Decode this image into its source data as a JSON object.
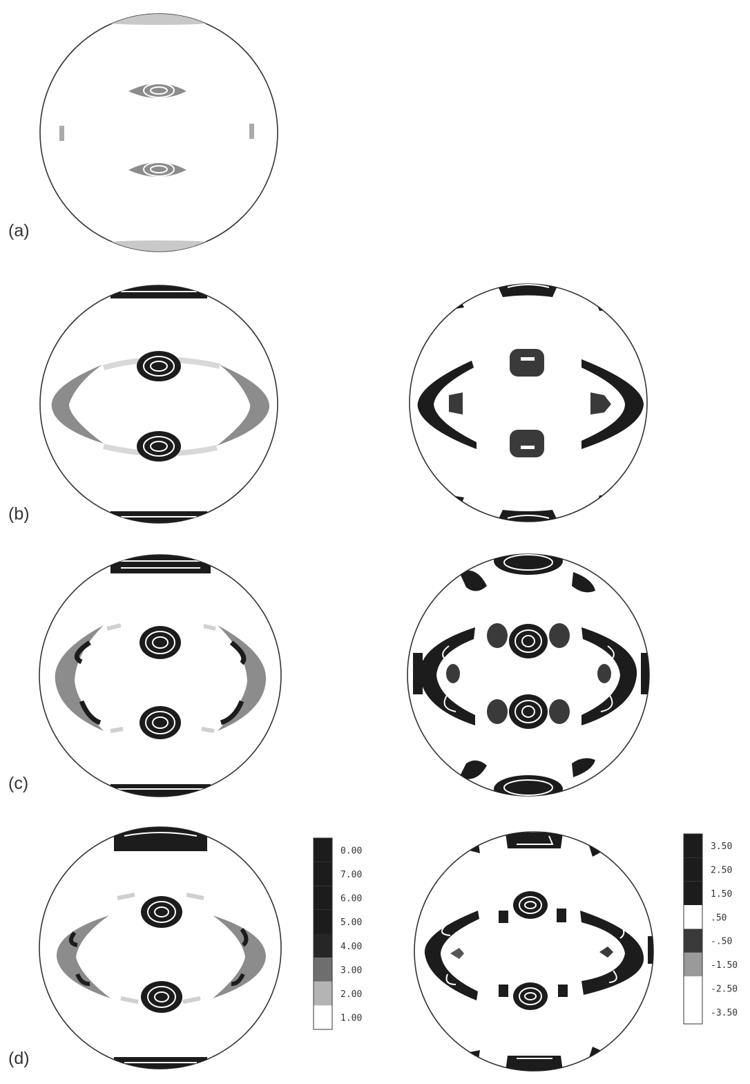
{
  "panels": [
    {
      "id": "a",
      "label": "(a)"
    },
    {
      "id": "b",
      "label": "(b)"
    },
    {
      "id": "c",
      "label": "(c)"
    },
    {
      "id": "d",
      "label": "(d)"
    }
  ],
  "scales": {
    "left": {
      "ticks": [
        "0.00",
        "7.00",
        "6.00",
        "5.00",
        "4.00",
        "3.00",
        "2.00",
        "1.00"
      ],
      "fills": [
        "#1c1c1c",
        "#1c1c1c",
        "#1c1c1c",
        "#1c1c1c",
        "#262626",
        "#6e6e6e",
        "#b4b4b4",
        "#ffffff"
      ]
    },
    "right": {
      "ticks": [
        "3.50",
        "2.50",
        "1.50",
        ".50",
        "-.50",
        "-1.50",
        "-2.50",
        "-3.50"
      ],
      "fills": [
        "#1c1c1c",
        "#1c1c1c",
        "#1c1c1c",
        "#ffffff",
        "#3a3a3a",
        "#9a9a9a",
        "#ffffff"
      ]
    }
  },
  "colors": {
    "dark": "#1c1c1c",
    "mid": "#8c8c8c",
    "light": "#c8c8c8",
    "outline": "#333333"
  }
}
